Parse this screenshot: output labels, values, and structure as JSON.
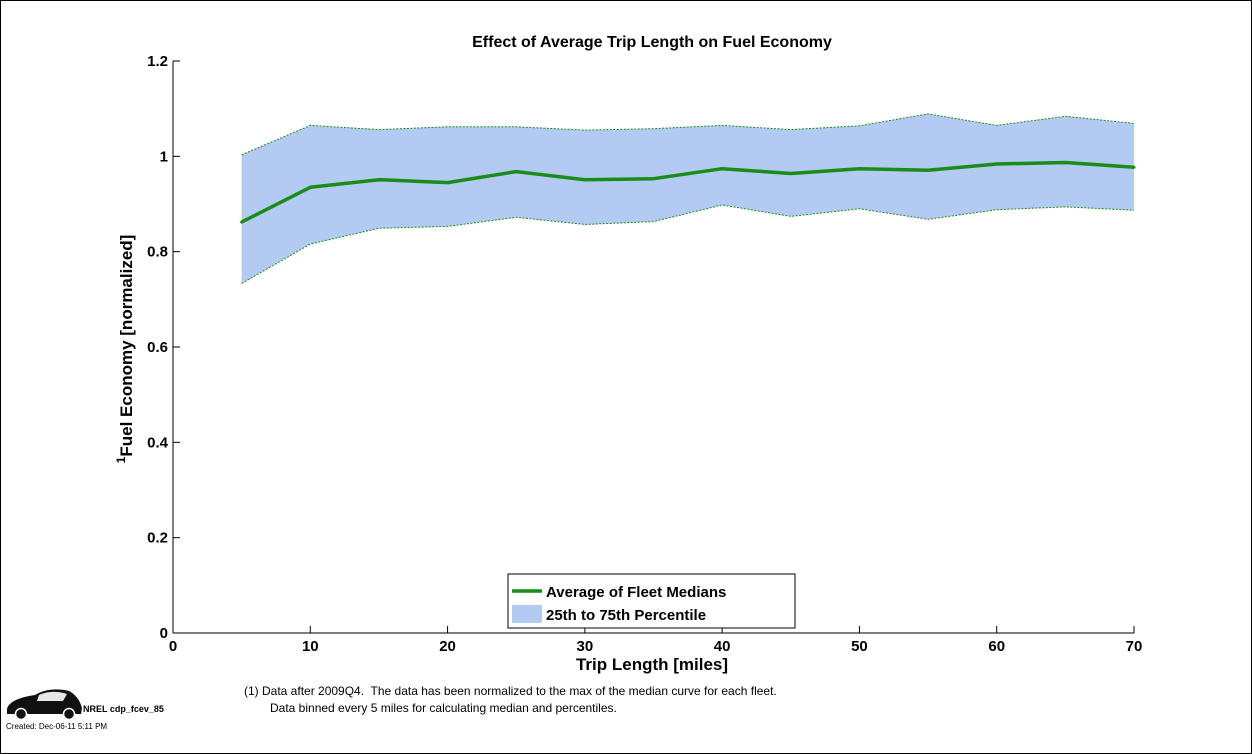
{
  "chart_data": {
    "type": "area",
    "title": "Effect of Average Trip Length on Fuel Economy",
    "xlabel": "Trip Length [miles]",
    "ylabel_superscript": "1",
    "ylabel": "Fuel Economy [normalized]",
    "xlim": [
      0,
      70
    ],
    "ylim": [
      0,
      1.2
    ],
    "x_ticks": [
      0,
      10,
      20,
      30,
      40,
      50,
      60,
      70
    ],
    "x_tick_labels": [
      "0",
      "10",
      "20",
      "30",
      "40",
      "50",
      "60",
      "70"
    ],
    "y_ticks": [
      0,
      0.2,
      0.4,
      0.6,
      0.8,
      1,
      1.2
    ],
    "y_tick_labels": [
      "0",
      "0.2",
      "0.4",
      "0.6",
      "0.8",
      "1",
      "1.2"
    ],
    "grid": false,
    "legend_position": "bottom-center",
    "x": [
      5,
      10,
      15,
      20,
      25,
      30,
      35,
      40,
      45,
      50,
      55,
      60,
      65,
      70
    ],
    "series": [
      {
        "name": "Average of Fleet Medians",
        "kind": "line",
        "color": "#1a8c1a",
        "values": [
          0.862,
          0.935,
          0.951,
          0.945,
          0.968,
          0.951,
          0.953,
          0.974,
          0.964,
          0.974,
          0.971,
          0.984,
          0.987,
          0.977
        ]
      },
      {
        "name": "25th to 75th Percentile",
        "kind": "band",
        "color": "#b3cbf2",
        "edge_color": "#1a8c1a",
        "lower": [
          0.733,
          0.816,
          0.849,
          0.853,
          0.872,
          0.857,
          0.863,
          0.898,
          0.874,
          0.89,
          0.868,
          0.888,
          0.894,
          0.887
        ],
        "upper": [
          1.003,
          1.065,
          1.056,
          1.062,
          1.062,
          1.055,
          1.058,
          1.065,
          1.056,
          1.064,
          1.089,
          1.065,
          1.084,
          1.069
        ]
      }
    ]
  },
  "footnote": {
    "line1": "(1) Data after 2009Q4.  The data has been normalized to the max of the median curve for each fleet.",
    "line2": "Data binned every 5 miles for calculating median and percentiles."
  },
  "badge": {
    "id": "NREL cdp_fcev_85",
    "created": "Created: Dec-06-11  5:11 PM"
  }
}
